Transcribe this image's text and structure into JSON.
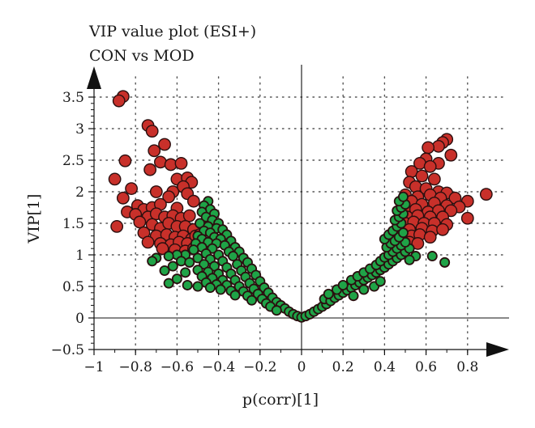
{
  "chart_data": {
    "type": "scatter",
    "title": "VIP value plot (ESI+)",
    "subtitle": "CON vs MOD",
    "xlabel": "p(corr)[1]",
    "ylabel": "VIP[1]",
    "xlim": [
      -1,
      1
    ],
    "ylim": [
      -0.5,
      3.7
    ],
    "xticks": [
      -1,
      -0.8,
      -0.6,
      -0.4,
      -0.2,
      0,
      0.2,
      0.4,
      0.6,
      0.8
    ],
    "xtick_labels": [
      "−1",
      "−0.8",
      "−0.6",
      "−0.4",
      "−0.2",
      "0",
      "0.2",
      "0.4",
      "0.6",
      "0.8"
    ],
    "yticks": [
      -0.5,
      0,
      0.5,
      1,
      1.5,
      2,
      2.5,
      3,
      3.5
    ],
    "ytick_labels": [
      "−0.5",
      "0",
      "0.5",
      "1",
      "1.5",
      "2",
      "2.5",
      "3",
      "3.5"
    ],
    "grid": "dotted",
    "colors": {
      "vip_gt_1": "#c8302a",
      "vip_le_1": "#1fa347",
      "marker_edge": "#2a0f0f",
      "axis": "#111111"
    },
    "series": [
      {
        "color": "#c8302a",
        "points": [
          [
            -0.86,
            3.51
          ],
          [
            -0.88,
            3.44
          ],
          [
            -0.74,
            3.05
          ],
          [
            -0.72,
            2.96
          ],
          [
            -0.66,
            2.75
          ],
          [
            -0.71,
            2.65
          ],
          [
            -0.85,
            2.49
          ],
          [
            -0.68,
            2.47
          ],
          [
            -0.63,
            2.43
          ],
          [
            -0.58,
            2.45
          ],
          [
            -0.73,
            2.35
          ],
          [
            -0.9,
            2.2
          ],
          [
            -0.6,
            2.2
          ],
          [
            -0.55,
            2.22
          ],
          [
            -0.53,
            2.15
          ],
          [
            -0.82,
            2.05
          ],
          [
            -0.7,
            2.0
          ],
          [
            -0.62,
            2.0
          ],
          [
            -0.57,
            2.08
          ],
          [
            -0.86,
            1.9
          ],
          [
            -0.64,
            1.92
          ],
          [
            -0.55,
            1.97
          ],
          [
            -0.79,
            1.78
          ],
          [
            -0.76,
            1.72
          ],
          [
            -0.72,
            1.75
          ],
          [
            -0.68,
            1.8
          ],
          [
            -0.6,
            1.74
          ],
          [
            -0.52,
            1.85
          ],
          [
            -0.84,
            1.68
          ],
          [
            -0.8,
            1.64
          ],
          [
            -0.74,
            1.6
          ],
          [
            -0.7,
            1.65
          ],
          [
            -0.66,
            1.6
          ],
          [
            -0.62,
            1.62
          ],
          [
            -0.58,
            1.58
          ],
          [
            -0.54,
            1.62
          ],
          [
            -0.89,
            1.45
          ],
          [
            -0.78,
            1.52
          ],
          [
            -0.72,
            1.48
          ],
          [
            -0.68,
            1.42
          ],
          [
            -0.64,
            1.5
          ],
          [
            -0.6,
            1.45
          ],
          [
            -0.56,
            1.45
          ],
          [
            -0.52,
            1.4
          ],
          [
            -0.76,
            1.35
          ],
          [
            -0.7,
            1.3
          ],
          [
            -0.65,
            1.32
          ],
          [
            -0.61,
            1.28
          ],
          [
            -0.57,
            1.3
          ],
          [
            -0.53,
            1.25
          ],
          [
            -0.74,
            1.2
          ],
          [
            -0.68,
            1.18
          ],
          [
            -0.63,
            1.16
          ],
          [
            -0.59,
            1.2
          ],
          [
            -0.55,
            1.18
          ],
          [
            -0.51,
            1.3
          ],
          [
            -0.49,
            1.32
          ],
          [
            -0.67,
            1.1
          ],
          [
            -0.61,
            1.08
          ],
          [
            -0.56,
            1.06
          ],
          [
            -0.52,
            1.1
          ],
          [
            0.7,
            2.83
          ],
          [
            0.68,
            2.78
          ],
          [
            0.66,
            2.72
          ],
          [
            0.61,
            2.7
          ],
          [
            0.72,
            2.58
          ],
          [
            0.6,
            2.52
          ],
          [
            0.66,
            2.45
          ],
          [
            0.57,
            2.45
          ],
          [
            0.62,
            2.4
          ],
          [
            0.53,
            2.32
          ],
          [
            0.58,
            2.25
          ],
          [
            0.64,
            2.2
          ],
          [
            0.52,
            2.15
          ],
          [
            0.55,
            2.08
          ],
          [
            0.6,
            2.05
          ],
          [
            0.66,
            2.0
          ],
          [
            0.7,
            1.98
          ],
          [
            0.89,
            1.96
          ],
          [
            0.5,
            1.95
          ],
          [
            0.56,
            1.92
          ],
          [
            0.62,
            1.95
          ],
          [
            0.67,
            1.9
          ],
          [
            0.74,
            1.9
          ],
          [
            0.8,
            1.85
          ],
          [
            0.53,
            1.85
          ],
          [
            0.58,
            1.8
          ],
          [
            0.64,
            1.82
          ],
          [
            0.7,
            1.78
          ],
          [
            0.76,
            1.76
          ],
          [
            0.5,
            1.7
          ],
          [
            0.55,
            1.72
          ],
          [
            0.61,
            1.68
          ],
          [
            0.66,
            1.7
          ],
          [
            0.72,
            1.7
          ],
          [
            0.51,
            1.6
          ],
          [
            0.56,
            1.62
          ],
          [
            0.62,
            1.6
          ],
          [
            0.68,
            1.6
          ],
          [
            0.8,
            1.58
          ],
          [
            0.5,
            1.5
          ],
          [
            0.54,
            1.52
          ],
          [
            0.59,
            1.5
          ],
          [
            0.64,
            1.5
          ],
          [
            0.7,
            1.48
          ],
          [
            0.52,
            1.4
          ],
          [
            0.58,
            1.42
          ],
          [
            0.63,
            1.38
          ],
          [
            0.68,
            1.4
          ],
          [
            0.53,
            1.3
          ],
          [
            0.57,
            1.32
          ],
          [
            0.62,
            1.28
          ],
          [
            0.52,
            1.2
          ],
          [
            0.56,
            1.18
          ]
        ]
      },
      {
        "color": "#1fa347",
        "points": [
          [
            -0.45,
            1.85
          ],
          [
            -0.47,
            1.78
          ],
          [
            -0.44,
            1.72
          ],
          [
            -0.48,
            1.68
          ],
          [
            -0.42,
            1.65
          ],
          [
            -0.46,
            1.6
          ],
          [
            -0.43,
            1.55
          ],
          [
            -0.49,
            1.5
          ],
          [
            -0.4,
            1.5
          ],
          [
            -0.45,
            1.45
          ],
          [
            -0.41,
            1.42
          ],
          [
            -0.47,
            1.38
          ],
          [
            -0.38,
            1.4
          ],
          [
            -0.44,
            1.35
          ],
          [
            -0.5,
            1.3
          ],
          [
            -0.36,
            1.32
          ],
          [
            -0.42,
            1.28
          ],
          [
            -0.48,
            1.25
          ],
          [
            -0.39,
            1.25
          ],
          [
            -0.34,
            1.22
          ],
          [
            -0.45,
            1.2
          ],
          [
            -0.51,
            1.18
          ],
          [
            -0.41,
            1.18
          ],
          [
            -0.37,
            1.15
          ],
          [
            -0.32,
            1.12
          ],
          [
            -0.48,
            1.12
          ],
          [
            -0.43,
            1.1
          ],
          [
            -0.52,
            1.08
          ],
          [
            -0.35,
            1.05
          ],
          [
            -0.3,
            1.05
          ],
          [
            -0.46,
            1.02
          ],
          [
            -0.4,
            1.0
          ],
          [
            -0.56,
            1.0
          ],
          [
            -0.6,
            1.0
          ],
          [
            -0.64,
            0.98
          ],
          [
            -0.7,
            0.95
          ],
          [
            -0.72,
            0.9
          ],
          [
            -0.33,
            0.98
          ],
          [
            -0.28,
            0.95
          ],
          [
            -0.5,
            0.95
          ],
          [
            -0.44,
            0.93
          ],
          [
            -0.38,
            0.9
          ],
          [
            -0.58,
            0.9
          ],
          [
            -0.54,
            0.88
          ],
          [
            -0.26,
            0.88
          ],
          [
            -0.31,
            0.85
          ],
          [
            -0.47,
            0.85
          ],
          [
            -0.42,
            0.82
          ],
          [
            -0.36,
            0.8
          ],
          [
            -0.62,
            0.82
          ],
          [
            -0.24,
            0.78
          ],
          [
            -0.29,
            0.75
          ],
          [
            -0.5,
            0.76
          ],
          [
            -0.45,
            0.73
          ],
          [
            -0.4,
            0.7
          ],
          [
            -0.34,
            0.7
          ],
          [
            -0.56,
            0.72
          ],
          [
            -0.66,
            0.75
          ],
          [
            -0.22,
            0.68
          ],
          [
            -0.27,
            0.65
          ],
          [
            -0.48,
            0.66
          ],
          [
            -0.43,
            0.63
          ],
          [
            -0.38,
            0.6
          ],
          [
            -0.32,
            0.6
          ],
          [
            -0.6,
            0.62
          ],
          [
            -0.2,
            0.58
          ],
          [
            -0.25,
            0.55
          ],
          [
            -0.46,
            0.56
          ],
          [
            -0.41,
            0.53
          ],
          [
            -0.36,
            0.52
          ],
          [
            -0.3,
            0.5
          ],
          [
            -0.55,
            0.52
          ],
          [
            -0.64,
            0.55
          ],
          [
            -0.18,
            0.48
          ],
          [
            -0.23,
            0.46
          ],
          [
            -0.44,
            0.48
          ],
          [
            -0.39,
            0.45
          ],
          [
            -0.34,
            0.43
          ],
          [
            -0.28,
            0.42
          ],
          [
            -0.5,
            0.5
          ],
          [
            -0.16,
            0.4
          ],
          [
            -0.21,
            0.38
          ],
          [
            -0.32,
            0.36
          ],
          [
            -0.26,
            0.35
          ],
          [
            -0.14,
            0.32
          ],
          [
            -0.19,
            0.3
          ],
          [
            -0.24,
            0.28
          ],
          [
            -0.12,
            0.25
          ],
          [
            -0.17,
            0.23
          ],
          [
            -0.1,
            0.2
          ],
          [
            -0.15,
            0.18
          ],
          [
            -0.08,
            0.15
          ],
          [
            -0.12,
            0.12
          ],
          [
            -0.06,
            0.1
          ],
          [
            -0.04,
            0.06
          ],
          [
            -0.02,
            0.03
          ],
          [
            0.0,
            0.01
          ],
          [
            0.02,
            0.03
          ],
          [
            0.04,
            0.06
          ],
          [
            0.06,
            0.1
          ],
          [
            0.08,
            0.14
          ],
          [
            0.1,
            0.18
          ],
          [
            0.12,
            0.22
          ],
          [
            0.11,
            0.3
          ],
          [
            0.14,
            0.27
          ],
          [
            0.16,
            0.32
          ],
          [
            0.13,
            0.38
          ],
          [
            0.18,
            0.36
          ],
          [
            0.2,
            0.4
          ],
          [
            0.17,
            0.45
          ],
          [
            0.22,
            0.44
          ],
          [
            0.24,
            0.48
          ],
          [
            0.2,
            0.52
          ],
          [
            0.26,
            0.52
          ],
          [
            0.28,
            0.56
          ],
          [
            0.24,
            0.6
          ],
          [
            0.3,
            0.6
          ],
          [
            0.32,
            0.64
          ],
          [
            0.27,
            0.66
          ],
          [
            0.34,
            0.68
          ],
          [
            0.36,
            0.72
          ],
          [
            0.3,
            0.72
          ],
          [
            0.38,
            0.76
          ],
          [
            0.33,
            0.78
          ],
          [
            0.4,
            0.8
          ],
          [
            0.36,
            0.84
          ],
          [
            0.42,
            0.85
          ],
          [
            0.38,
            0.9
          ],
          [
            0.44,
            0.9
          ],
          [
            0.4,
            0.96
          ],
          [
            0.46,
            0.95
          ],
          [
            0.42,
            1.0
          ],
          [
            0.48,
            1.0
          ],
          [
            0.44,
            1.05
          ],
          [
            0.5,
            1.05
          ],
          [
            0.46,
            1.1
          ],
          [
            0.52,
            1.1
          ],
          [
            0.41,
            1.12
          ],
          [
            0.48,
            1.15
          ],
          [
            0.43,
            1.18
          ],
          [
            0.5,
            1.2
          ],
          [
            0.45,
            1.22
          ],
          [
            0.4,
            1.25
          ],
          [
            0.47,
            1.28
          ],
          [
            0.42,
            1.32
          ],
          [
            0.49,
            1.35
          ],
          [
            0.44,
            1.38
          ],
          [
            0.46,
            1.45
          ],
          [
            0.48,
            1.5
          ],
          [
            0.45,
            1.55
          ],
          [
            0.47,
            1.6
          ],
          [
            0.49,
            1.65
          ],
          [
            0.46,
            1.7
          ],
          [
            0.48,
            1.75
          ],
          [
            0.5,
            1.8
          ],
          [
            0.47,
            1.85
          ],
          [
            0.49,
            1.92
          ],
          [
            0.35,
            0.5
          ],
          [
            0.3,
            0.45
          ],
          [
            0.38,
            0.58
          ],
          [
            0.25,
            0.35
          ],
          [
            0.55,
            0.98
          ],
          [
            0.63,
            0.98
          ],
          [
            0.69,
            0.88
          ],
          [
            0.52,
            0.92
          ]
        ]
      }
    ]
  }
}
